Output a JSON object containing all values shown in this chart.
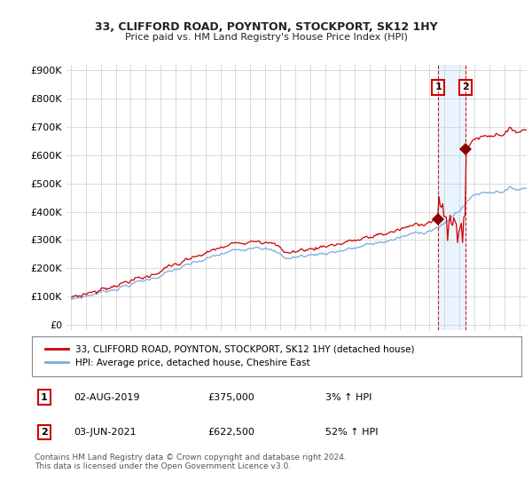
{
  "title": "33, CLIFFORD ROAD, POYNTON, STOCKPORT, SK12 1HY",
  "subtitle": "Price paid vs. HM Land Registry's House Price Index (HPI)",
  "ylabel_ticks": [
    "£0",
    "£100K",
    "£200K",
    "£300K",
    "£400K",
    "£500K",
    "£600K",
    "£700K",
    "£800K",
    "£900K"
  ],
  "ytick_vals": [
    0,
    100000,
    200000,
    300000,
    400000,
    500000,
    600000,
    700000,
    800000,
    900000
  ],
  "ylim": [
    -20000,
    920000
  ],
  "xlim_left": 1994.7,
  "xlim_right": 2025.5,
  "sale1_x": 2019.58,
  "sale1_y": 375000,
  "sale2_x": 2021.42,
  "sale2_y": 622500,
  "line_color_property": "#cc0000",
  "line_color_hpi": "#7aaadd",
  "sale_marker_color": "#880000",
  "annotation_box_color": "#cc0000",
  "shade_color": "#ddeeff",
  "legend_label_property": "33, CLIFFORD ROAD, POYNTON, STOCKPORT, SK12 1HY (detached house)",
  "legend_label_hpi": "HPI: Average price, detached house, Cheshire East",
  "table_rows": [
    {
      "num": "1",
      "date": "02-AUG-2019",
      "price": "£375,000",
      "hpi": "3% ↑ HPI"
    },
    {
      "num": "2",
      "date": "03-JUN-2021",
      "price": "£622,500",
      "hpi": "52% ↑ HPI"
    }
  ],
  "footnote": "Contains HM Land Registry data © Crown copyright and database right 2024.\nThis data is licensed under the Open Government Licence v3.0.",
  "bg_color": "#ffffff",
  "grid_color": "#cccccc",
  "font_color": "#222222"
}
